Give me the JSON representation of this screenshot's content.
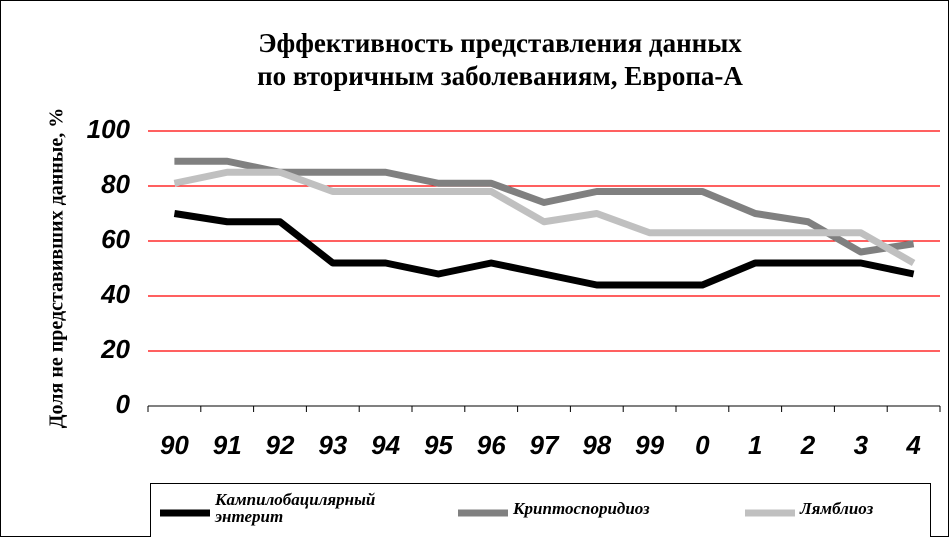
{
  "chart_data": {
    "type": "line",
    "title": [
      "Эффективность представления данных",
      "по вторичным заболеваниям, Европа-А"
    ],
    "y_label": "Доля не представивших данные, %",
    "categories": [
      "90",
      "91",
      "92",
      "93",
      "94",
      "95",
      "96",
      "97",
      "98",
      "99",
      "0",
      "1",
      "2",
      "3",
      "4"
    ],
    "series": [
      {
        "name": "Кампилобацилярный энтерит",
        "color": "#000000",
        "values": [
          70,
          67,
          67,
          52,
          52,
          48,
          52,
          48,
          44,
          44,
          44,
          52,
          52,
          52,
          48
        ]
      },
      {
        "name": "Криптоспоридиоз",
        "color": "#808080",
        "values": [
          89,
          89,
          85,
          85,
          85,
          81,
          81,
          74,
          78,
          78,
          78,
          70,
          67,
          56,
          59
        ]
      },
      {
        "name": "Лямблиоз",
        "color": "#c0c0c0",
        "values": [
          81,
          85,
          85,
          78,
          78,
          78,
          78,
          67,
          70,
          63,
          63,
          63,
          63,
          63,
          52
        ]
      }
    ],
    "ylim": [
      0,
      100
    ],
    "yticks": [
      0,
      20,
      40,
      60,
      80,
      100
    ],
    "grid": true,
    "grid_color": "#ff0000",
    "legend": "bottom"
  }
}
